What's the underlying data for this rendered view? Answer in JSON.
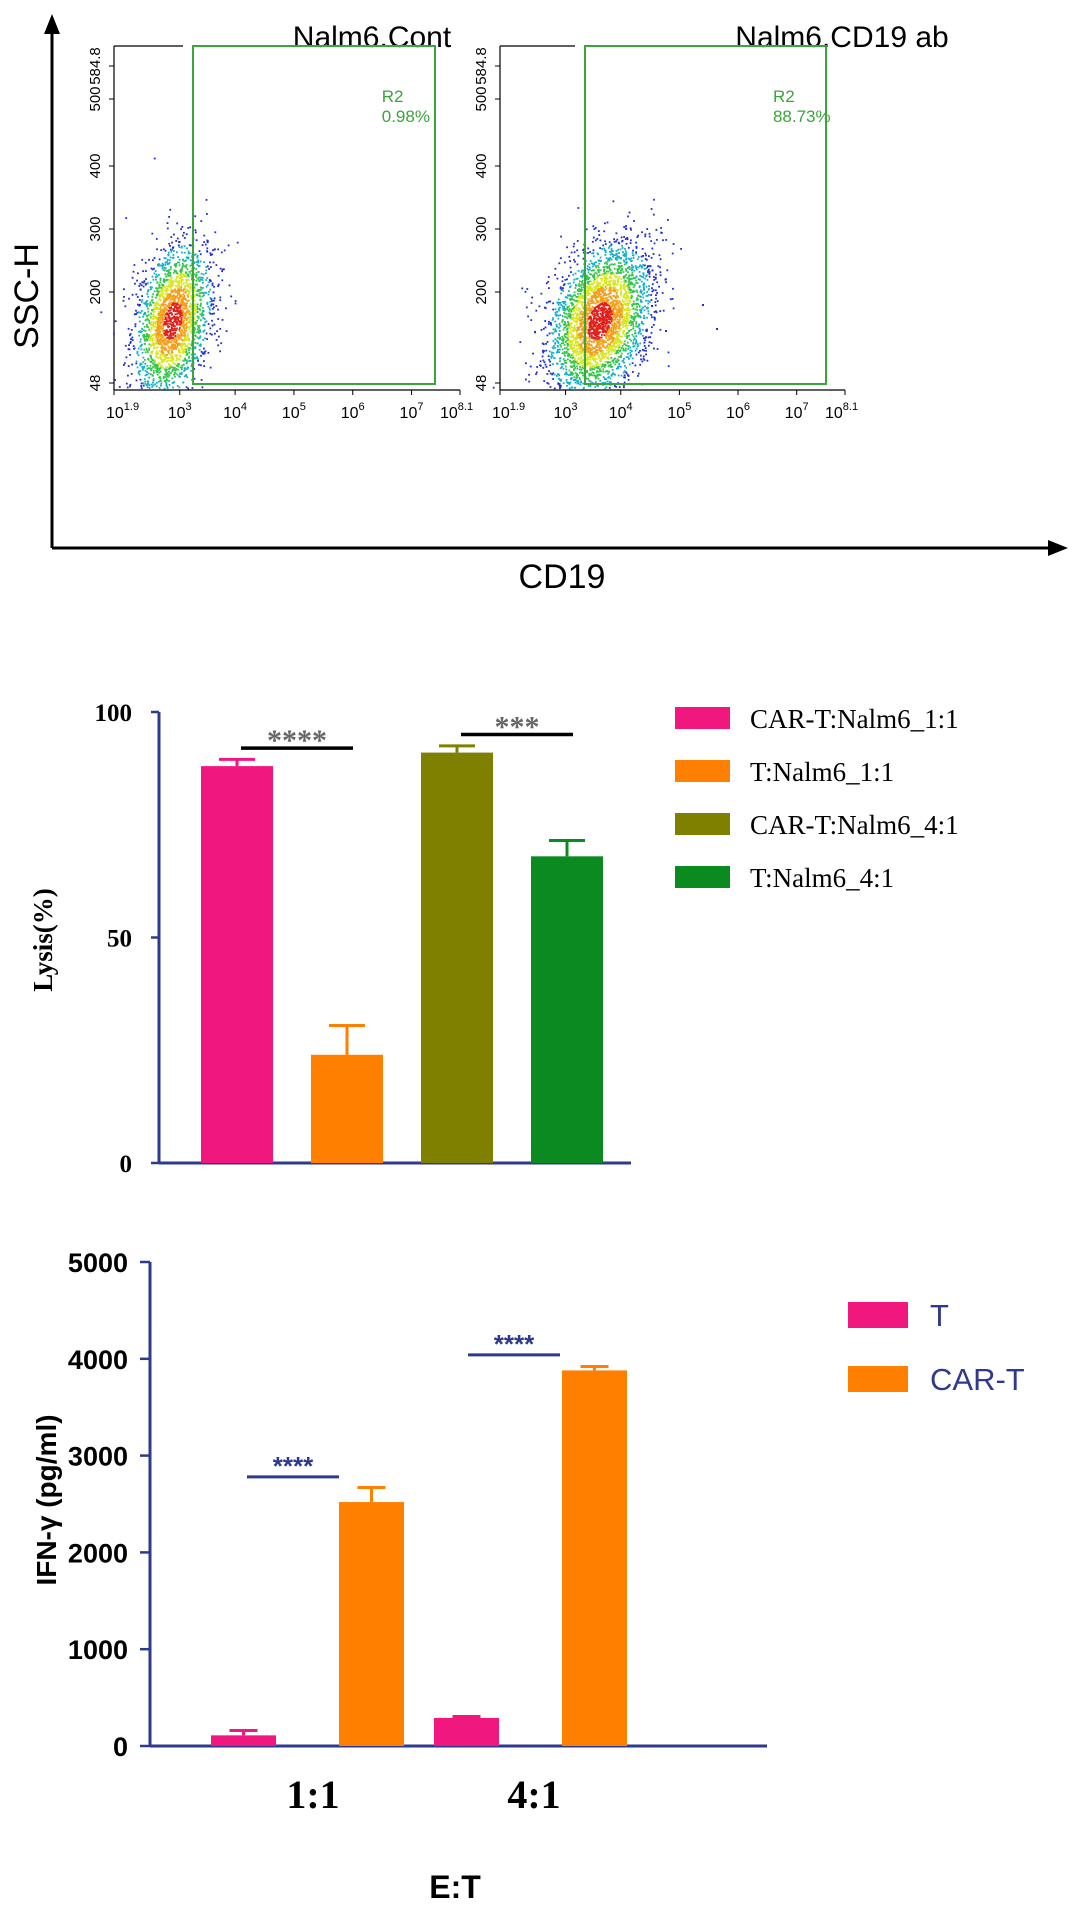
{
  "flow": {
    "y_axis_label": "SSC-H",
    "x_axis_label": "CD19",
    "y_ticks": [
      "48",
      "200",
      "300",
      "400",
      "500",
      "584.8"
    ],
    "x_ticks": [
      {
        "base": "10",
        "exp": "1.9"
      },
      {
        "base": "10",
        "exp": "3"
      },
      {
        "base": "10",
        "exp": "4"
      },
      {
        "base": "10",
        "exp": "5"
      },
      {
        "base": "10",
        "exp": "6"
      },
      {
        "base": "10",
        "exp": "7"
      },
      {
        "base": "10",
        "exp": "8.1"
      }
    ],
    "panels": [
      {
        "title": "Nalm6.Cont",
        "gate_name": "R2",
        "gate_value": "0.98%"
      },
      {
        "title": "Nalm6.CD19 ab",
        "gate_name": "R2",
        "gate_value": "88.73%"
      }
    ]
  },
  "colors": {
    "pink": "#f0177f",
    "orange": "#ff7f00",
    "olive": "#808000",
    "green": "#0a8a1f",
    "axis": "#2e3a8c",
    "gate": "#3aa53a",
    "sig_gray": "#666666"
  },
  "chart_data": [
    {
      "type": "bar",
      "title": "",
      "ylabel": "Lysis(%)",
      "xlabel": "",
      "ylim": [
        0,
        100
      ],
      "yticks": [
        "0",
        "50",
        "100"
      ],
      "legend_position": "right",
      "series": [
        {
          "name": "CAR-T:Nalm6_1:1",
          "value": 88,
          "error": 1.5,
          "color": "#f0177f"
        },
        {
          "name": "T:Nalm6_1:1",
          "value": 24,
          "error": 6.5,
          "color": "#ff7f00"
        },
        {
          "name": "CAR-T:Nalm6_4:1",
          "value": 91,
          "error": 1.5,
          "color": "#808000"
        },
        {
          "name": "T:Nalm6_4:1",
          "value": 68,
          "error": 3.5,
          "color": "#0a8a1f"
        }
      ],
      "significance": [
        {
          "label": "****",
          "from": 0,
          "to": 1,
          "value": 92
        },
        {
          "label": "***",
          "from": 2,
          "to": 3,
          "value": 95
        }
      ]
    },
    {
      "type": "bar",
      "title": "",
      "ylabel": "IFN-γ (pg/ml)",
      "xlabel": "E:T",
      "ylim": [
        0,
        5000
      ],
      "yticks": [
        "0",
        "1000",
        "2000",
        "3000",
        "4000",
        "5000"
      ],
      "categories": [
        "1:1",
        "4:1"
      ],
      "legend_position": "top-right",
      "series": [
        {
          "name": "T",
          "values": [
            110,
            290
          ],
          "errors": [
            50,
            15
          ],
          "color": "#f0177f"
        },
        {
          "name": "CAR-T",
          "values": [
            2520,
            3880
          ],
          "errors": [
            150,
            40
          ],
          "color": "#ff7f00"
        }
      ],
      "significance": [
        {
          "label": "****",
          "category": 0,
          "value": 2780
        },
        {
          "label": "****",
          "category": 1,
          "value": 4040
        }
      ]
    }
  ]
}
